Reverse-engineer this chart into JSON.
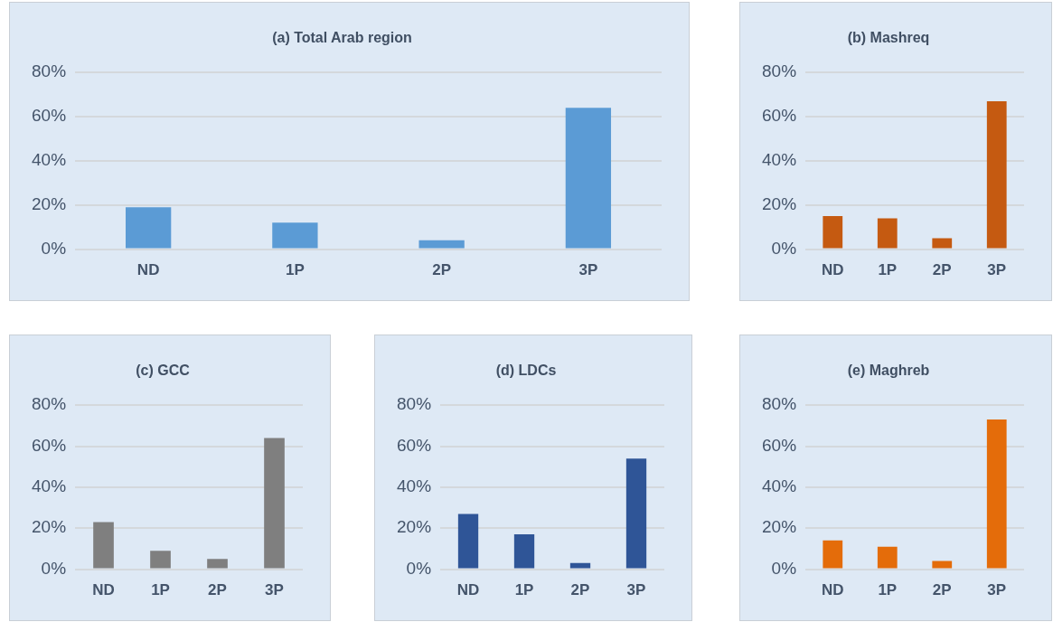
{
  "chart_data": [
    {
      "type": "bar",
      "title": "(a) Total Arab region",
      "categories": [
        "ND",
        "1P",
        "2P",
        "3P"
      ],
      "values": [
        19,
        12,
        4,
        64
      ],
      "color": "#5b9bd5",
      "ylim": [
        0,
        80
      ],
      "yticks": [
        {
          "value": 0,
          "label": "0%"
        },
        {
          "value": 20,
          "label": "20%"
        },
        {
          "value": 40,
          "label": "40%"
        },
        {
          "value": 60,
          "label": "60%"
        },
        {
          "value": 80,
          "label": "80%"
        }
      ],
      "grid": "y",
      "legend": false
    },
    {
      "type": "bar",
      "title": "(b) Mashreq",
      "categories": [
        "ND",
        "1P",
        "2P",
        "3P"
      ],
      "values": [
        15,
        14,
        5,
        67
      ],
      "color": "#c55a11",
      "ylim": [
        0,
        80
      ],
      "yticks": [
        {
          "value": 0,
          "label": "0%"
        },
        {
          "value": 20,
          "label": "20%"
        },
        {
          "value": 40,
          "label": "40%"
        },
        {
          "value": 60,
          "label": "60%"
        },
        {
          "value": 80,
          "label": "80%"
        }
      ],
      "grid": "y",
      "legend": false
    },
    {
      "type": "bar",
      "title": "(c) GCC",
      "categories": [
        "ND",
        "1P",
        "2P",
        "3P"
      ],
      "values": [
        23,
        9,
        5,
        64
      ],
      "color": "#7f7f7f",
      "ylim": [
        0,
        80
      ],
      "yticks": [
        {
          "value": 0,
          "label": "0%"
        },
        {
          "value": 20,
          "label": "20%"
        },
        {
          "value": 40,
          "label": "40%"
        },
        {
          "value": 60,
          "label": "60%"
        },
        {
          "value": 80,
          "label": "80%"
        }
      ],
      "grid": "y",
      "legend": false
    },
    {
      "type": "bar",
      "title": "(d) LDCs",
      "categories": [
        "ND",
        "1P",
        "2P",
        "3P"
      ],
      "values": [
        27,
        17,
        3,
        54
      ],
      "color": "#2f5597",
      "ylim": [
        0,
        80
      ],
      "yticks": [
        {
          "value": 0,
          "label": "0%"
        },
        {
          "value": 20,
          "label": "20%"
        },
        {
          "value": 40,
          "label": "40%"
        },
        {
          "value": 60,
          "label": "60%"
        },
        {
          "value": 80,
          "label": "80%"
        }
      ],
      "grid": "y",
      "legend": false
    },
    {
      "type": "bar",
      "title": "(e) Maghreb",
      "categories": [
        "ND",
        "1P",
        "2P",
        "3P"
      ],
      "values": [
        14,
        11,
        4,
        73
      ],
      "color": "#e46c0a",
      "ylim": [
        0,
        80
      ],
      "yticks": [
        {
          "value": 0,
          "label": "0%"
        },
        {
          "value": 20,
          "label": "20%"
        },
        {
          "value": 40,
          "label": "40%"
        },
        {
          "value": 60,
          "label": "60%"
        },
        {
          "value": 80,
          "label": "80%"
        }
      ],
      "grid": "y",
      "legend": false
    }
  ]
}
